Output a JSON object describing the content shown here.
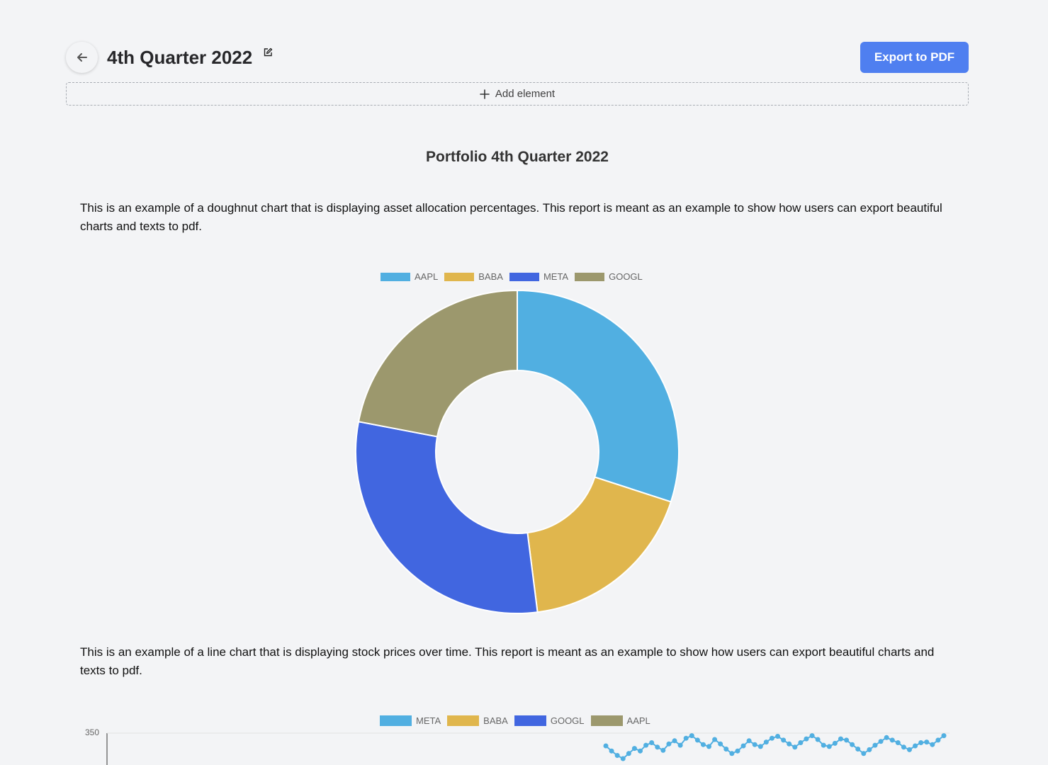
{
  "header": {
    "title": "4th Quarter 2022",
    "export_label": "Export to PDF"
  },
  "add_element_label": "Add element",
  "report": {
    "title": "Portfolio 4th Quarter 2022",
    "paragraph1": "This is an example of a doughnut chart that is displaying asset allocation percentages. This report is meant as an example to show how users can export beautiful charts and texts to pdf.",
    "paragraph2": "This is an example of a line chart that is displaying stock prices over time. This report is meant as an example to show how users can export beautiful charts and texts to pdf."
  },
  "colors": {
    "aapl": "#51afe1",
    "baba": "#e0b64d",
    "meta": "#4166e0",
    "googl": "#9c986d",
    "accent": "#4f7ff0"
  },
  "chart_data": [
    {
      "type": "doughnut",
      "categories": [
        "AAPL",
        "BABA",
        "META",
        "GOOGL"
      ],
      "values": [
        30,
        18,
        30,
        22
      ],
      "colors": [
        "#51afe1",
        "#e0b64d",
        "#4166e0",
        "#9c986d"
      ],
      "legend_position": "top"
    },
    {
      "type": "line",
      "series": [
        {
          "name": "META",
          "color": "#51afe1",
          "values": [
            330,
            322,
            315,
            310,
            318,
            326,
            322,
            331,
            335,
            328,
            323,
            333,
            338,
            331,
            342,
            346,
            339,
            332,
            329,
            340,
            333,
            325,
            318,
            322,
            330,
            338,
            332,
            329,
            336,
            342,
            345,
            339,
            333,
            328,
            335,
            341,
            346,
            340,
            331,
            329,
            334,
            341,
            339,
            332,
            325,
            318,
            324,
            331,
            337,
            343,
            339,
            335,
            328,
            324,
            330,
            335,
            336,
            332,
            339,
            346
          ]
        },
        {
          "name": "BABA",
          "color": "#e0b64d",
          "values": []
        },
        {
          "name": "GOOGL",
          "color": "#4166e0",
          "values": []
        },
        {
          "name": "AAPL",
          "color": "#9c986d",
          "values": []
        }
      ],
      "y_ticks": [
        "350"
      ],
      "legend_position": "top",
      "grid": true
    }
  ]
}
